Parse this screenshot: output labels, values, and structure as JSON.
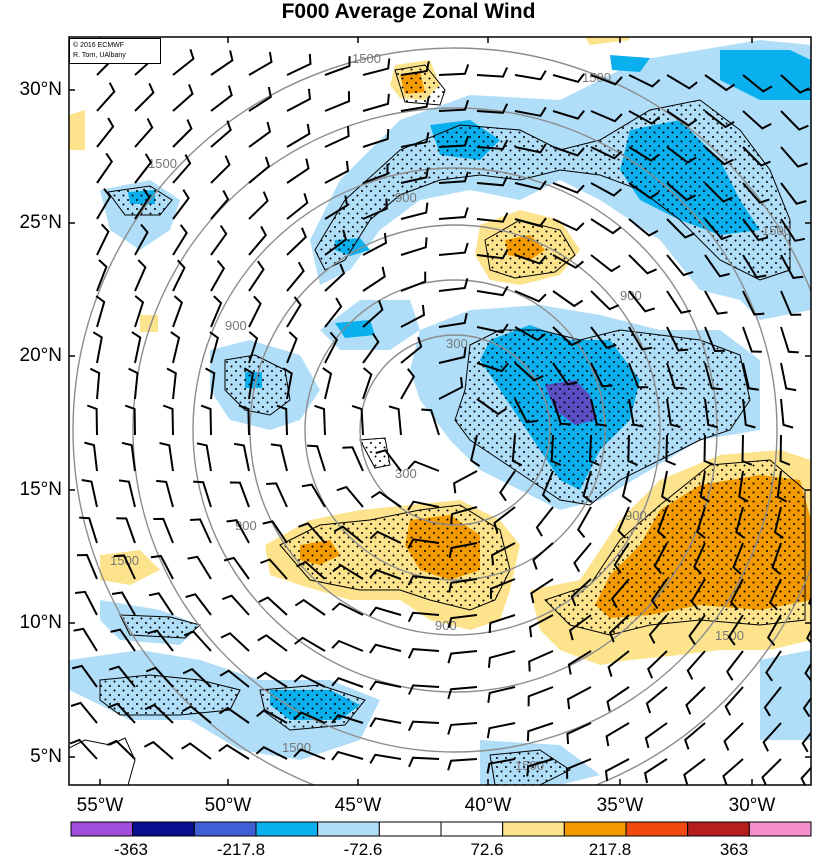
{
  "title": "F000 Average Zonal Wind",
  "credit": {
    "line1": "© 2016 ECMWF",
    "line2": "R. Torn, UAlbany"
  },
  "lat_labels": [
    "30°N",
    "25°N",
    "20°N",
    "15°N",
    "10°N",
    "5°N"
  ],
  "lon_labels": [
    "55°W",
    "50°W",
    "45°W",
    "40°W",
    "35°W",
    "30°W"
  ],
  "colorbar": {
    "colors": [
      "#a04fdc",
      "#0a0f8f",
      "#3e5fd6",
      "#0ab0ee",
      "#b0def8",
      "#ffffff",
      "#ffffff",
      "#fde48c",
      "#f29a00",
      "#f04a10",
      "#b71f1f",
      "#f58fcb"
    ],
    "labels": [
      "-363",
      "-217.8",
      "-72.6",
      "72.6",
      "217.8",
      "363"
    ]
  },
  "contours": {
    "units_labels": [
      "300",
      "900",
      "1500"
    ]
  },
  "colors": {
    "light_blue": "#b0def8",
    "mid_blue": "#0ab0ee",
    "purple_blue": "#5a4ec4",
    "light_yellow": "#fde48c",
    "orange": "#f29a00",
    "range_ring": "#8c8c8c"
  }
}
